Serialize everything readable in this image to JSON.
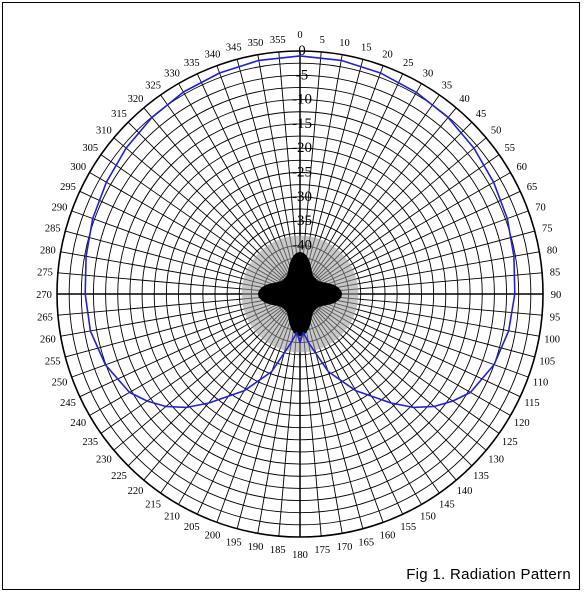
{
  "figure": {
    "caption": "Fig 1. Radiation Pattern"
  },
  "chart_data": {
    "type": "polar-line",
    "title": "",
    "angle_unit": "degrees",
    "angle_ticks": [
      0,
      5,
      10,
      15,
      20,
      25,
      30,
      35,
      40,
      45,
      50,
      55,
      60,
      65,
      70,
      75,
      80,
      85,
      90,
      95,
      100,
      105,
      110,
      115,
      120,
      125,
      130,
      135,
      140,
      145,
      150,
      155,
      160,
      165,
      170,
      175,
      180,
      185,
      190,
      195,
      200,
      205,
      210,
      215,
      220,
      225,
      230,
      235,
      240,
      245,
      250,
      255,
      260,
      265,
      270,
      275,
      280,
      285,
      290,
      295,
      300,
      305,
      310,
      315,
      320,
      325,
      330,
      335,
      340,
      345,
      350,
      355
    ],
    "radial_ticks": [
      0,
      -5,
      -10,
      -15,
      -20,
      -25,
      -30,
      -35,
      -40
    ],
    "radial_range": [
      -50,
      0
    ],
    "rings_count": 20,
    "grid": true,
    "series": [
      {
        "color": "#2222cc",
        "angles": [
          0,
          10,
          20,
          30,
          40,
          50,
          60,
          70,
          80,
          90,
          100,
          110,
          120,
          125,
          130,
          135,
          140,
          150,
          160,
          170,
          175,
          178,
          180,
          182,
          185,
          190,
          200,
          210,
          220,
          225,
          230,
          235,
          240,
          250,
          260,
          270,
          280,
          290,
          300,
          310,
          320,
          330,
          340,
          350
        ],
        "values": [
          -1,
          -1.2,
          -1.6,
          -2.1,
          -2.6,
          -3.3,
          -4,
          -4.6,
          -5.3,
          -5.8,
          -6.4,
          -7.5,
          -9.5,
          -11.6,
          -14,
          -17,
          -20.7,
          -27,
          -33,
          -39.8,
          -42,
          -41,
          -40,
          -41,
          -42,
          -40,
          -33,
          -27,
          -20.7,
          -17,
          -14,
          -11.6,
          -9.5,
          -7.4,
          -6.2,
          -5.8,
          -5.3,
          -4.6,
          -4,
          -3.3,
          -2.6,
          -2,
          -1.6,
          -1.2
        ]
      }
    ]
  }
}
